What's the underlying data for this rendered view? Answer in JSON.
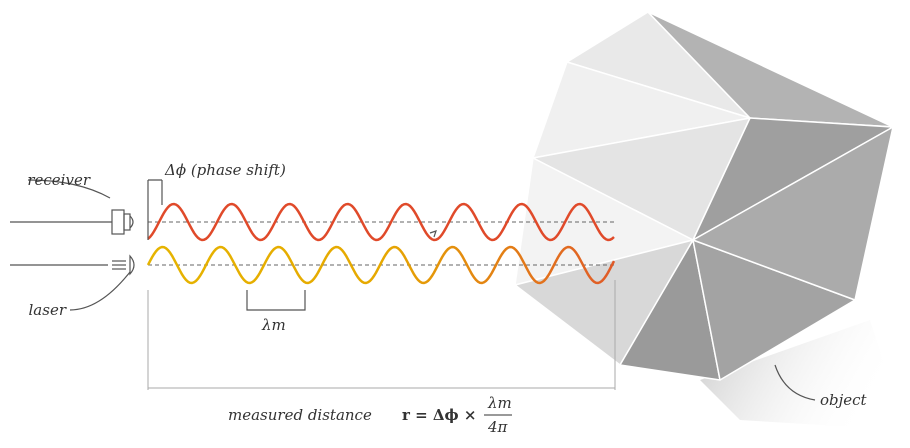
{
  "labels": {
    "receiver": "receiver",
    "laser": "laser",
    "phase_shift": "Δϕ (phase shift)",
    "wavelength": "λm",
    "object": "object"
  },
  "distance": {
    "label": "measured distance",
    "formula": "r = Δϕ ×",
    "numerator": "λm",
    "denominator": "4π"
  }
}
